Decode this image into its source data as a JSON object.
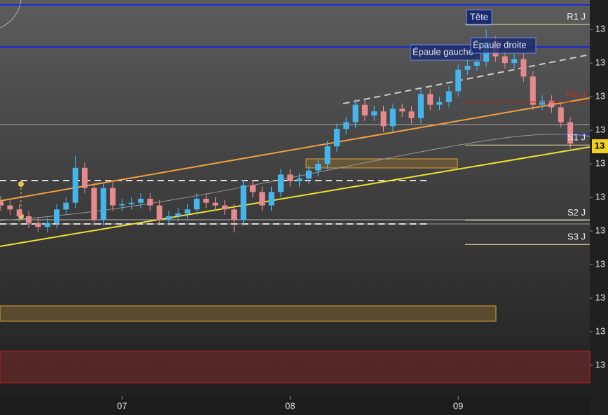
{
  "chart_data": {
    "type": "candlestick",
    "categories": [
      null,
      null,
      null,
      null,
      null,
      null,
      null,
      null,
      null,
      null,
      null,
      null,
      null,
      "07",
      null,
      null,
      null,
      null,
      null,
      null,
      null,
      null,
      null,
      null,
      null,
      null,
      null,
      null,
      null,
      null,
      null,
      "08",
      null,
      null,
      null,
      null,
      null,
      null,
      null,
      null,
      null,
      null,
      null,
      null,
      null,
      null,
      null,
      null,
      null,
      "09",
      null,
      null,
      null,
      null,
      null,
      null,
      null,
      null,
      null,
      null,
      null,
      null
    ],
    "open": [
      13122,
      13119,
      13116,
      13111,
      13106,
      13103,
      13106,
      13116,
      13121,
      13147,
      13132,
      13108,
      13132,
      13119,
      13120,
      13121,
      13124,
      13119,
      13108,
      13111,
      13113,
      13116,
      13124,
      13121,
      13119,
      13116,
      13108,
      13134,
      13129,
      13119,
      13129,
      13142,
      13137,
      13139,
      13145,
      13150,
      13163,
      13176,
      13181,
      13194,
      13186,
      13189,
      13178,
      13191,
      13189,
      13184,
      13202,
      13194,
      13196,
      13204,
      13220,
      13223,
      13226,
      13241,
      13230,
      13225,
      13228,
      13215,
      13194,
      13197,
      13192,
      13181
    ],
    "high": [
      13126,
      13123,
      13120,
      13115,
      13110,
      13110,
      13120,
      13125,
      13156,
      13151,
      13136,
      13136,
      13136,
      13124,
      13125,
      13128,
      13128,
      13123,
      13115,
      13117,
      13120,
      13128,
      13128,
      13125,
      13123,
      13120,
      13138,
      13138,
      13133,
      13133,
      13146,
      13146,
      13143,
      13149,
      13154,
      13167,
      13180,
      13185,
      13198,
      13198,
      13193,
      13193,
      13195,
      13195,
      13193,
      13206,
      13206,
      13200,
      13208,
      13224,
      13227,
      13230,
      13250,
      13245,
      13234,
      13232,
      13232,
      13219,
      13201,
      13201,
      13196,
      13185
    ],
    "low": [
      13115,
      13112,
      13107,
      13102,
      13099,
      13099,
      13102,
      13112,
      13117,
      13128,
      13104,
      13104,
      13115,
      13115,
      13116,
      13117,
      13115,
      13104,
      13104,
      13107,
      13109,
      13112,
      13117,
      13115,
      13112,
      13099,
      13104,
      13125,
      13115,
      13115,
      13125,
      13133,
      13133,
      13135,
      13141,
      13146,
      13159,
      13172,
      13177,
      13182,
      13182,
      13174,
      13174,
      13185,
      13180,
      13180,
      13190,
      13190,
      13192,
      13200,
      13216,
      13219,
      13222,
      13226,
      13221,
      13221,
      13211,
      13190,
      13190,
      13188,
      13177,
      13161
    ],
    "close": [
      13119,
      13116,
      13111,
      13106,
      13103,
      13106,
      13116,
      13121,
      13147,
      13132,
      13108,
      13132,
      13119,
      13120,
      13121,
      13124,
      13119,
      13108,
      13111,
      13113,
      13116,
      13124,
      13121,
      13119,
      13116,
      13108,
      13134,
      13129,
      13119,
      13129,
      13142,
      13137,
      13139,
      13145,
      13150,
      13163,
      13176,
      13181,
      13194,
      13186,
      13189,
      13178,
      13191,
      13189,
      13184,
      13202,
      13194,
      13196,
      13204,
      13220,
      13223,
      13226,
      13241,
      13230,
      13225,
      13228,
      13215,
      13194,
      13197,
      13192,
      13181,
      13165
    ],
    "up_color": "#45b5ee",
    "down_color": "#e58a8e",
    "ylim": [
      12977,
      13272
    ],
    "yticks": [
      {
        "value": 13250,
        "label": "13"
      },
      {
        "value": 13225,
        "label": "13"
      },
      {
        "value": 13200,
        "label": "13"
      },
      {
        "value": 13175,
        "label": "13"
      },
      {
        "value": 13150,
        "label": "13"
      },
      {
        "value": 13125,
        "label": "13"
      },
      {
        "value": 13100,
        "label": "13"
      },
      {
        "value": 13075,
        "label": "13"
      },
      {
        "value": 13050,
        "label": "13"
      },
      {
        "value": 13025,
        "label": "13"
      },
      {
        "value": 13000,
        "label": "13"
      }
    ],
    "levels": [
      {
        "name": "R1 J",
        "value": 13254,
        "color": "#e8e0a0"
      },
      {
        "name": "Piv J",
        "value": 13196,
        "color": "#b02020"
      },
      {
        "name": "S1 J",
        "value": 13164,
        "color": "#e8e0a0"
      },
      {
        "name": "S2 J",
        "value": 13108,
        "color": "#e8e0a0"
      },
      {
        "name": "S3 J",
        "value": 13090,
        "color": "#e8e0a0"
      }
    ],
    "annotations": [
      "Tête",
      "Épaule gauche",
      "Épaule droite"
    ],
    "last_price_label": "13"
  }
}
